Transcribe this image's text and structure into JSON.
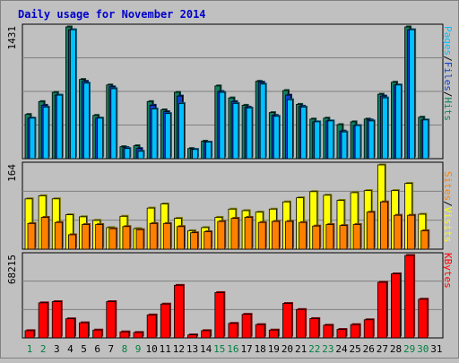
{
  "title": "Daily usage for November 2014",
  "colors": {
    "background": "#c0c0c0",
    "plot": "#c0c0c0",
    "title": "#0000cc",
    "pages": "#00c0ff",
    "files": "#1040d0",
    "hits": "#108060",
    "sites": "#ff8000",
    "visits": "#ffff00",
    "kbytes": "#ff0000",
    "weekend": "#008040",
    "weekday": "#000000"
  },
  "chart_data": [
    {
      "type": "bar",
      "name": "hits-files-pages",
      "max_label": "1431",
      "ymax": 1431,
      "legend": [
        {
          "key": "pages",
          "text": "Pages"
        },
        {
          "key": "sep1",
          "text": "/"
        },
        {
          "key": "files",
          "text": "Files"
        },
        {
          "key": "sep2",
          "text": "/"
        },
        {
          "key": "hits",
          "text": "Hits"
        }
      ],
      "categories": [
        "1",
        "2",
        "3",
        "4",
        "5",
        "6",
        "7",
        "8",
        "9",
        "10",
        "11",
        "12",
        "13",
        "14",
        "15",
        "16",
        "17",
        "18",
        "19",
        "20",
        "21",
        "22",
        "23",
        "24",
        "25",
        "26",
        "27",
        "28",
        "29",
        "30",
        "31"
      ],
      "series": [
        {
          "key": "hits",
          "values": [
            480,
            620,
            720,
            1431,
            860,
            470,
            800,
            130,
            140,
            620,
            530,
            720,
            110,
            190,
            790,
            660,
            580,
            840,
            500,
            740,
            590,
            430,
            440,
            370,
            400,
            430,
            700,
            830,
            1431,
            450,
            0
          ]
        },
        {
          "key": "files",
          "values": [
            440,
            580,
            690,
            1400,
            840,
            440,
            780,
            120,
            110,
            580,
            510,
            680,
            100,
            180,
            730,
            620,
            560,
            830,
            470,
            690,
            570,
            400,
            410,
            300,
            360,
            420,
            680,
            800,
            1400,
            420,
            0
          ]
        },
        {
          "key": "pages",
          "values": [
            440,
            560,
            690,
            1400,
            820,
            440,
            760,
            110,
            80,
            540,
            490,
            600,
            100,
            180,
            720,
            600,
            550,
            810,
            460,
            640,
            560,
            400,
            410,
            290,
            360,
            410,
            660,
            800,
            1400,
            420,
            0
          ]
        }
      ]
    },
    {
      "type": "bar",
      "name": "visits-sites",
      "max_label": "164",
      "ymax": 164,
      "legend": [
        {
          "key": "sites",
          "text": "Sites"
        },
        {
          "key": "sep",
          "text": "/"
        },
        {
          "key": "visits",
          "text": "Visits"
        }
      ],
      "categories": [
        "1",
        "2",
        "3",
        "4",
        "5",
        "6",
        "7",
        "8",
        "9",
        "10",
        "11",
        "12",
        "13",
        "14",
        "15",
        "16",
        "17",
        "18",
        "19",
        "20",
        "21",
        "22",
        "23",
        "24",
        "25",
        "26",
        "27",
        "28",
        "29",
        "30",
        "31"
      ],
      "series": [
        {
          "key": "visits",
          "values": [
            98,
            104,
            98,
            67,
            63,
            56,
            42,
            64,
            40,
            80,
            88,
            60,
            36,
            42,
            62,
            78,
            75,
            72,
            78,
            92,
            100,
            112,
            105,
            95,
            110,
            114,
            164,
            114,
            128,
            68,
            0
          ]
        },
        {
          "key": "sites",
          "values": [
            50,
            62,
            52,
            28,
            48,
            48,
            40,
            44,
            38,
            50,
            50,
            44,
            32,
            34,
            54,
            60,
            62,
            52,
            54,
            54,
            52,
            45,
            48,
            46,
            48,
            72,
            92,
            66,
            66,
            36,
            0
          ]
        }
      ]
    },
    {
      "type": "bar",
      "name": "kbytes",
      "max_label": "68215",
      "ymax": 68215,
      "legend": [
        {
          "key": "kbytes",
          "text": "KBytes"
        }
      ],
      "categories": [
        "1",
        "2",
        "3",
        "4",
        "5",
        "6",
        "7",
        "8",
        "9",
        "10",
        "11",
        "12",
        "13",
        "14",
        "15",
        "16",
        "17",
        "18",
        "19",
        "20",
        "21",
        "22",
        "23",
        "24",
        "25",
        "26",
        "27",
        "28",
        "29",
        "30",
        "31"
      ],
      "series": [
        {
          "key": "kbytes",
          "values": [
            6000,
            29000,
            30000,
            15800,
            12500,
            6500,
            30000,
            5000,
            4500,
            19000,
            28000,
            43500,
            2500,
            6000,
            37500,
            12000,
            19500,
            11000,
            6500,
            28500,
            23500,
            16000,
            10500,
            7000,
            11000,
            15000,
            46000,
            53000,
            68215,
            32000,
            0
          ]
        }
      ]
    }
  ],
  "xaxis": {
    "labels": [
      "1",
      "2",
      "3",
      "4",
      "5",
      "6",
      "7",
      "8",
      "9",
      "10",
      "11",
      "12",
      "13",
      "14",
      "15",
      "16",
      "17",
      "18",
      "19",
      "20",
      "21",
      "22",
      "23",
      "24",
      "25",
      "26",
      "27",
      "28",
      "29",
      "30",
      "31"
    ],
    "weekend": [
      1,
      2,
      8,
      9,
      15,
      16,
      22,
      23,
      29,
      30
    ]
  }
}
